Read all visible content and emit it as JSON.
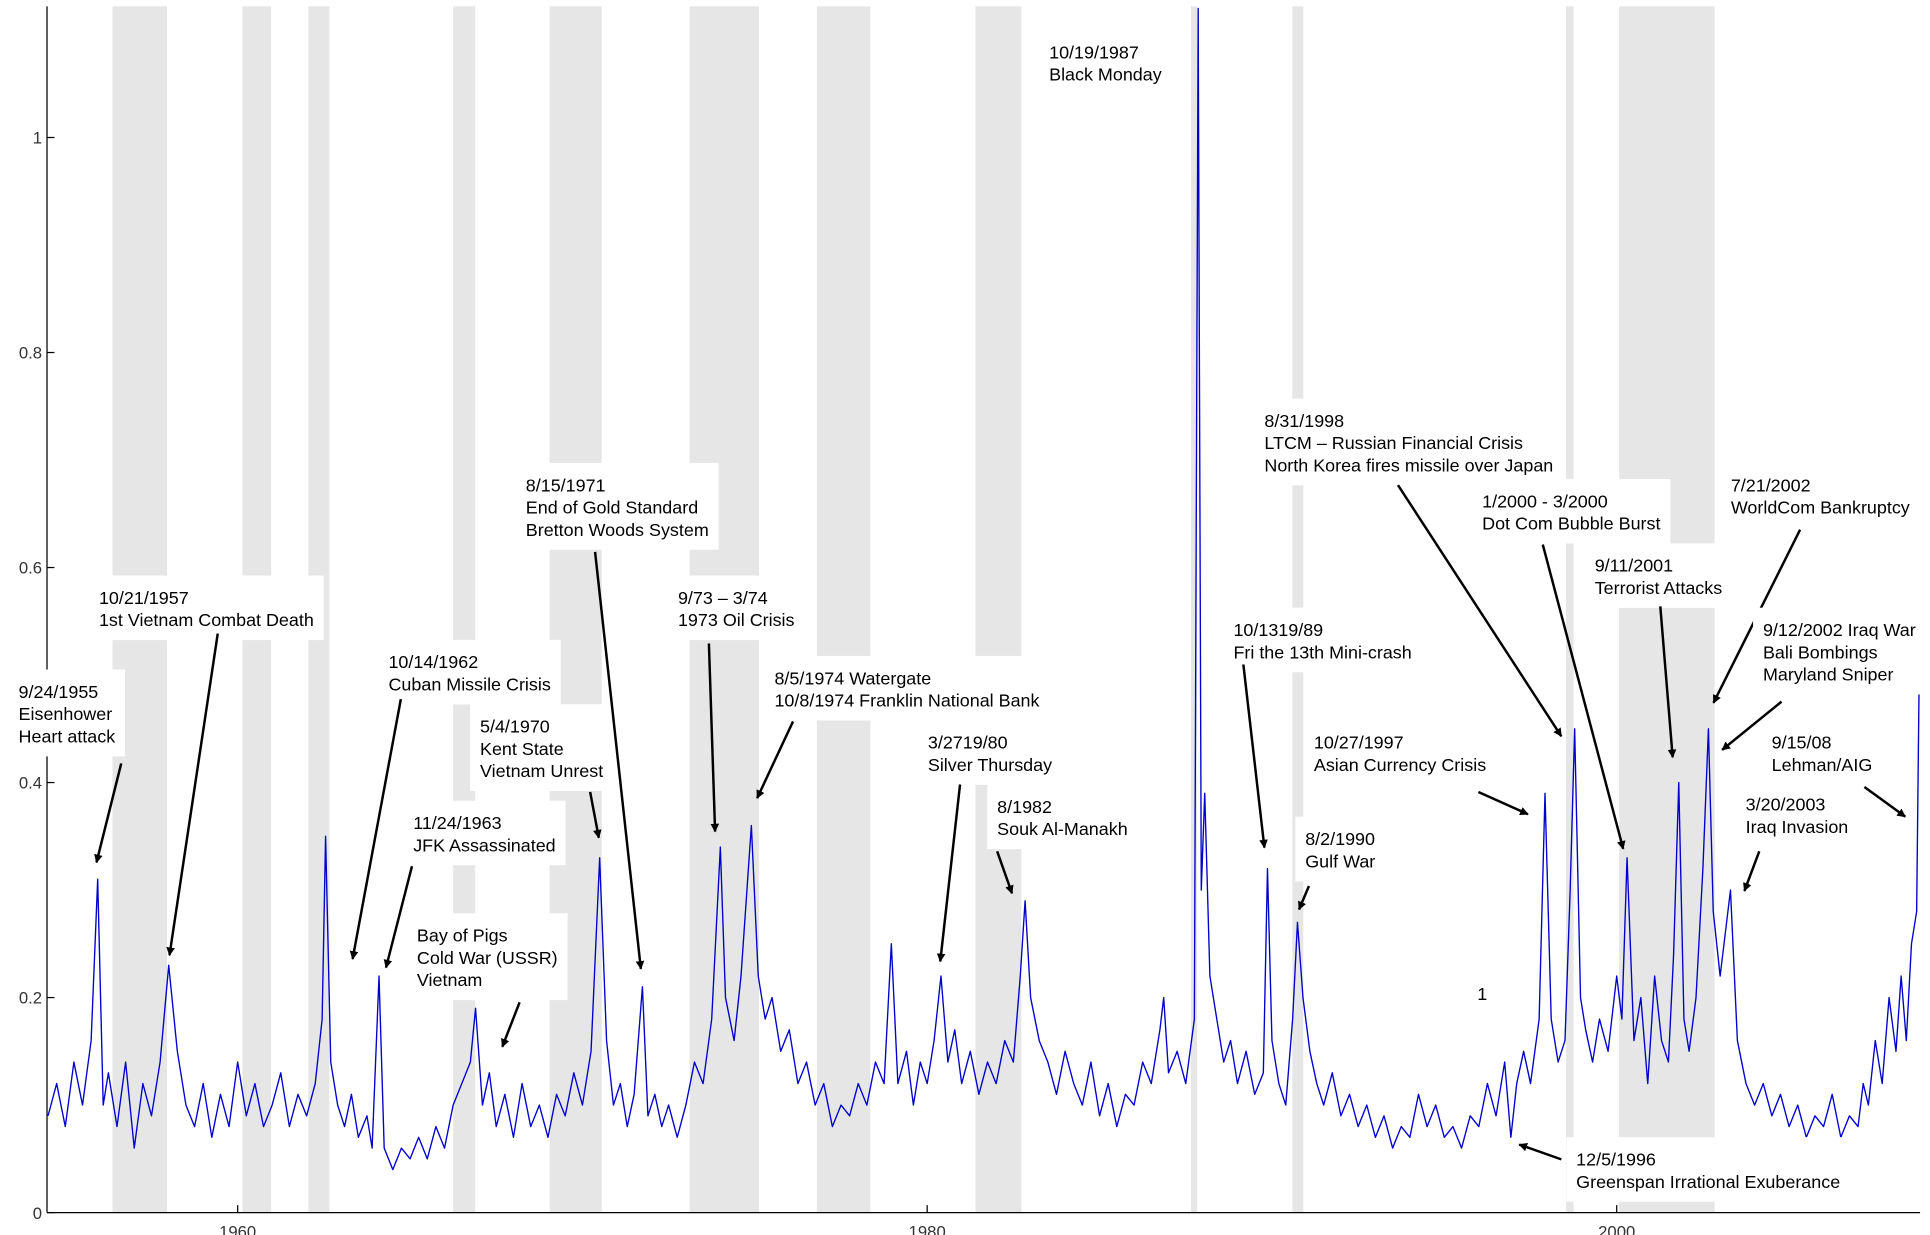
{
  "chart_data": {
    "type": "line",
    "color": "#0000cc",
    "band_color": "#e6e6e6",
    "xlim": [
      1954.47,
      2008.8
    ],
    "ylim": [
      0,
      1.122
    ],
    "xticks": [
      1960,
      1980,
      2000
    ],
    "yticks": [
      0,
      0.2,
      0.4,
      0.6,
      0.8,
      1
    ],
    "shaded_periods": [
      [
        1956.37,
        1957.95
      ],
      [
        1960.14,
        1960.97
      ],
      [
        1962.05,
        1962.66
      ],
      [
        1966.25,
        1966.89
      ],
      [
        1969.05,
        1970.56
      ],
      [
        1973.11,
        1975.12
      ],
      [
        1976.8,
        1978.35
      ],
      [
        1981.4,
        1982.73
      ],
      [
        1987.65,
        1987.83
      ],
      [
        1990.59,
        1990.91
      ],
      [
        1998.53,
        1998.75
      ],
      [
        2000.07,
        2002.84
      ]
    ],
    "x": [
      1954.5,
      1954.75,
      1955.0,
      1955.25,
      1955.5,
      1955.75,
      1955.94,
      1956.1,
      1956.25,
      1956.5,
      1956.75,
      1957.0,
      1957.25,
      1957.5,
      1957.75,
      1958.0,
      1958.25,
      1958.5,
      1958.75,
      1959.0,
      1959.25,
      1959.5,
      1959.75,
      1960.0,
      1960.25,
      1960.5,
      1960.75,
      1961.0,
      1961.25,
      1961.5,
      1961.75,
      1962.0,
      1962.25,
      1962.45,
      1962.55,
      1962.7,
      1962.9,
      1963.1,
      1963.3,
      1963.5,
      1963.75,
      1963.9,
      1964.1,
      1964.25,
      1964.5,
      1964.75,
      1965.0,
      1965.25,
      1965.5,
      1965.75,
      1966.0,
      1966.25,
      1966.5,
      1966.75,
      1966.9,
      1967.1,
      1967.3,
      1967.5,
      1967.75,
      1968.0,
      1968.25,
      1968.5,
      1968.75,
      1969.0,
      1969.25,
      1969.5,
      1969.75,
      1970.0,
      1970.25,
      1970.5,
      1970.7,
      1970.9,
      1971.1,
      1971.3,
      1971.5,
      1971.74,
      1971.9,
      1972.1,
      1972.3,
      1972.5,
      1972.75,
      1973.0,
      1973.25,
      1973.5,
      1973.75,
      1974.0,
      1974.15,
      1974.4,
      1974.6,
      1974.9,
      1975.1,
      1975.3,
      1975.5,
      1975.75,
      1976.0,
      1976.25,
      1976.5,
      1976.75,
      1977.0,
      1977.25,
      1977.5,
      1977.75,
      1978.0,
      1978.25,
      1978.5,
      1978.75,
      1978.96,
      1979.15,
      1979.4,
      1979.6,
      1979.8,
      1980.0,
      1980.2,
      1980.4,
      1980.6,
      1980.8,
      1981.0,
      1981.25,
      1981.5,
      1981.75,
      1982.0,
      1982.25,
      1982.5,
      1982.7,
      1982.84,
      1983.0,
      1983.25,
      1983.5,
      1983.75,
      1984.0,
      1984.25,
      1984.5,
      1984.75,
      1985.0,
      1985.25,
      1985.5,
      1985.75,
      1986.0,
      1986.25,
      1986.5,
      1986.75,
      1986.86,
      1987.0,
      1987.25,
      1987.5,
      1987.75,
      1987.86,
      1987.95,
      1988.05,
      1988.2,
      1988.4,
      1988.6,
      1988.8,
      1989.0,
      1989.25,
      1989.5,
      1989.75,
      1989.87,
      1990.0,
      1990.2,
      1990.4,
      1990.6,
      1990.74,
      1990.9,
      1991.1,
      1991.3,
      1991.5,
      1991.75,
      1992.0,
      1992.25,
      1992.5,
      1992.75,
      1993.0,
      1993.25,
      1993.5,
      1993.75,
      1994.0,
      1994.25,
      1994.5,
      1994.75,
      1995.0,
      1995.25,
      1995.5,
      1995.75,
      1996.0,
      1996.25,
      1996.5,
      1996.75,
      1996.93,
      1997.1,
      1997.3,
      1997.5,
      1997.75,
      1997.92,
      1998.1,
      1998.3,
      1998.5,
      1998.65,
      1998.78,
      1998.95,
      1999.1,
      1999.3,
      1999.5,
      1999.75,
      2000.0,
      2000.15,
      2000.3,
      2000.5,
      2000.7,
      2000.9,
      2001.1,
      2001.3,
      2001.5,
      2001.65,
      2001.8,
      2001.95,
      2002.1,
      2002.3,
      2002.5,
      2002.66,
      2002.8,
      2003.0,
      2003.15,
      2003.3,
      2003.5,
      2003.75,
      2004.0,
      2004.25,
      2004.5,
      2004.75,
      2005.0,
      2005.25,
      2005.5,
      2005.75,
      2006.0,
      2006.25,
      2006.5,
      2006.75,
      2007.0,
      2007.15,
      2007.3,
      2007.5,
      2007.7,
      2007.9,
      2008.1,
      2008.25,
      2008.4,
      2008.55,
      2008.7,
      2008.77
    ],
    "values": [
      0.09,
      0.12,
      0.08,
      0.14,
      0.1,
      0.16,
      0.31,
      0.1,
      0.13,
      0.08,
      0.14,
      0.06,
      0.12,
      0.09,
      0.14,
      0.23,
      0.15,
      0.1,
      0.08,
      0.12,
      0.07,
      0.11,
      0.08,
      0.14,
      0.09,
      0.12,
      0.08,
      0.1,
      0.13,
      0.08,
      0.11,
      0.09,
      0.12,
      0.18,
      0.35,
      0.14,
      0.1,
      0.08,
      0.11,
      0.07,
      0.09,
      0.06,
      0.22,
      0.06,
      0.04,
      0.06,
      0.05,
      0.07,
      0.05,
      0.08,
      0.06,
      0.1,
      0.12,
      0.14,
      0.19,
      0.1,
      0.13,
      0.08,
      0.11,
      0.07,
      0.12,
      0.08,
      0.1,
      0.07,
      0.11,
      0.09,
      0.13,
      0.1,
      0.15,
      0.33,
      0.16,
      0.1,
      0.12,
      0.08,
      0.11,
      0.21,
      0.09,
      0.11,
      0.08,
      0.1,
      0.07,
      0.1,
      0.14,
      0.12,
      0.18,
      0.34,
      0.2,
      0.16,
      0.22,
      0.36,
      0.22,
      0.18,
      0.2,
      0.15,
      0.17,
      0.12,
      0.14,
      0.1,
      0.12,
      0.08,
      0.1,
      0.09,
      0.12,
      0.1,
      0.14,
      0.12,
      0.25,
      0.12,
      0.15,
      0.1,
      0.14,
      0.12,
      0.16,
      0.22,
      0.14,
      0.17,
      0.12,
      0.15,
      0.11,
      0.14,
      0.12,
      0.16,
      0.14,
      0.22,
      0.29,
      0.2,
      0.16,
      0.14,
      0.11,
      0.15,
      0.12,
      0.1,
      0.14,
      0.09,
      0.12,
      0.08,
      0.11,
      0.1,
      0.14,
      0.12,
      0.17,
      0.2,
      0.13,
      0.15,
      0.12,
      0.18,
      1.12,
      0.3,
      0.39,
      0.22,
      0.18,
      0.14,
      0.16,
      0.12,
      0.15,
      0.11,
      0.13,
      0.32,
      0.16,
      0.12,
      0.1,
      0.18,
      0.27,
      0.2,
      0.15,
      0.12,
      0.1,
      0.13,
      0.09,
      0.11,
      0.08,
      0.1,
      0.07,
      0.09,
      0.06,
      0.08,
      0.07,
      0.11,
      0.08,
      0.1,
      0.07,
      0.08,
      0.06,
      0.09,
      0.08,
      0.12,
      0.09,
      0.14,
      0.07,
      0.12,
      0.15,
      0.12,
      0.18,
      0.39,
      0.18,
      0.14,
      0.16,
      0.3,
      0.45,
      0.2,
      0.17,
      0.14,
      0.18,
      0.15,
      0.22,
      0.18,
      0.33,
      0.16,
      0.2,
      0.12,
      0.22,
      0.16,
      0.14,
      0.24,
      0.4,
      0.18,
      0.15,
      0.2,
      0.32,
      0.45,
      0.28,
      0.22,
      0.26,
      0.3,
      0.16,
      0.12,
      0.1,
      0.12,
      0.09,
      0.11,
      0.08,
      0.1,
      0.07,
      0.09,
      0.08,
      0.11,
      0.07,
      0.09,
      0.08,
      0.12,
      0.1,
      0.16,
      0.12,
      0.2,
      0.15,
      0.22,
      0.16,
      0.25,
      0.28,
      0.49
    ],
    "annotations": [
      [
        "9/24/1955",
        "Eisenhower",
        "Heart attack"
      ],
      [
        "10/21/1957",
        "1st Vietnam Combat Death"
      ],
      [
        "10/14/1962",
        "Cuban Missile Crisis"
      ],
      [
        "5/4/1970",
        "Kent State",
        "Vietnam Unrest"
      ],
      [
        "11/24/1963",
        "JFK Assassinated"
      ],
      [
        "Bay of Pigs",
        "Cold War (USSR)",
        "Vietnam"
      ],
      [
        "8/15/1971",
        "End of Gold Standard",
        "Bretton Woods System"
      ],
      [
        "9/73 – 3/74",
        "1973 Oil Crisis"
      ],
      [
        "8/5/1974  Watergate",
        "10/8/1974  Franklin National Bank"
      ],
      [
        "3/2719/80",
        "Silver Thursday"
      ],
      [
        "8/1982",
        "Souk Al-Manakh"
      ],
      [
        "10/19/1987",
        "Black Monday"
      ],
      [
        "10/1319/89",
        "Fri the 13th Mini-crash"
      ],
      [
        "8/2/1990",
        "Gulf War"
      ],
      [
        "10/27/1997",
        "Asian Currency Crisis"
      ],
      [
        "8/31/1998",
        "LTCM – Russian Financial Crisis",
        "North Korea fires missile over Japan"
      ],
      [
        "1/2000 - 3/2000",
        "Dot Com Bubble Burst"
      ],
      [
        "7/21/2002",
        "WorldCom Bankruptcy"
      ],
      [
        "9/11/2001",
        "Terrorist Attacks"
      ],
      [
        "9/12/2002 Iraq War",
        "Bali Bombings",
        "Maryland Sniper"
      ],
      [
        "9/15/08",
        "Lehman/AIG"
      ],
      [
        "3/20/2003",
        "Iraq Invasion"
      ],
      [
        "12/5/1996",
        "Greenspan Irrational Exuberance"
      ],
      [
        "1"
      ]
    ]
  }
}
